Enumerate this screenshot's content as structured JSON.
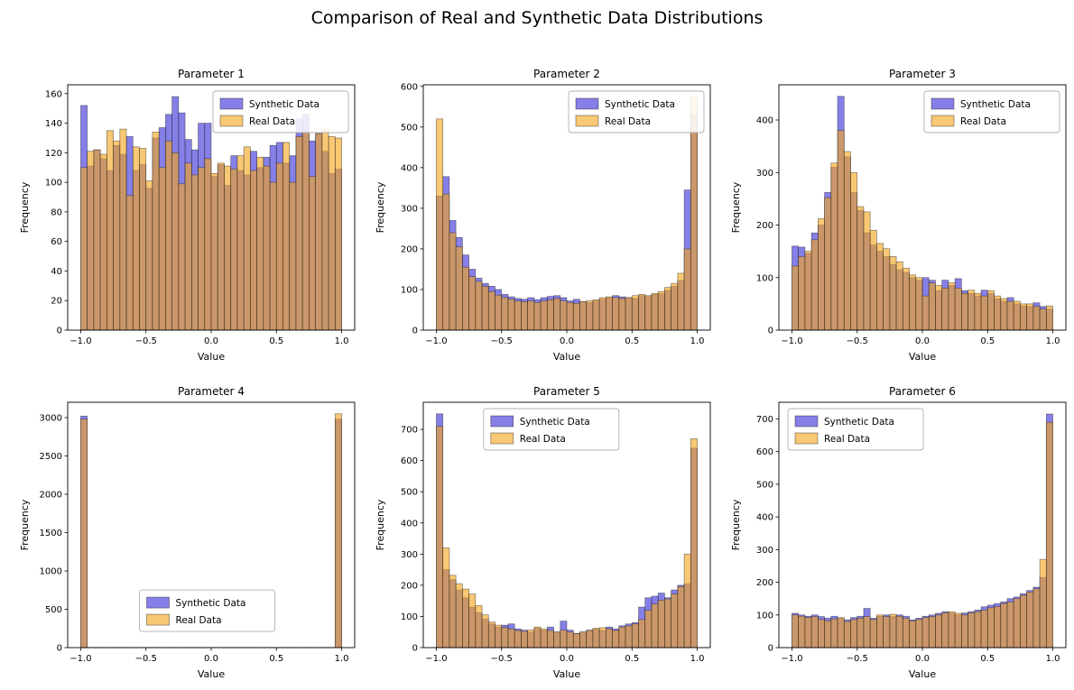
{
  "chart_data": {
    "type": "bar",
    "subtype": "overlaid-histogram-grid",
    "suptitle": "Comparison of Real and Synthetic Data Distributions",
    "rows": 2,
    "cols": 3,
    "bin_start": -1.0,
    "bin_width": 0.05,
    "n_bins": 40,
    "xlim": [
      -1.1,
      1.1
    ],
    "xticks": [
      -1.0,
      -0.5,
      0.0,
      0.5,
      1.0
    ],
    "xlabel": "Value",
    "ylabel": "Frequency",
    "grid": false,
    "series_names": [
      "Synthetic Data",
      "Real Data"
    ],
    "charts": [
      {
        "title": "Parameter 1",
        "ylim": [
          0,
          166
        ],
        "ytick_step": 20,
        "legend_loc": "upper-right",
        "synthetic": [
          152,
          111,
          122,
          116,
          108,
          125,
          119,
          131,
          108,
          112,
          96,
          130,
          137,
          146,
          158,
          147,
          129,
          122,
          140,
          140,
          104,
          112,
          98,
          118,
          108,
          105,
          121,
          110,
          117,
          125,
          127,
          113,
          118,
          143,
          146,
          128,
          133,
          121,
          106,
          109
        ],
        "real": [
          110,
          121,
          122,
          119,
          135,
          128,
          136,
          91,
          124,
          123,
          101,
          134,
          110,
          128,
          120,
          99,
          113,
          105,
          110,
          116,
          106,
          113,
          111,
          109,
          118,
          124,
          108,
          117,
          111,
          100,
          113,
          127,
          100,
          131,
          134,
          104,
          133,
          136,
          131,
          130
        ]
      },
      {
        "title": "Parameter 2",
        "ylim": [
          0,
          604
        ],
        "ytick_step": 100,
        "legend_loc": "upper-right",
        "synthetic": [
          330,
          378,
          270,
          228,
          185,
          150,
          128,
          115,
          108,
          100,
          88,
          82,
          78,
          76,
          80,
          75,
          80,
          83,
          85,
          80,
          72,
          76,
          70,
          68,
          72,
          76,
          80,
          85,
          82,
          80,
          78,
          85,
          83,
          88,
          90,
          98,
          108,
          122,
          345,
          530
        ],
        "real": [
          520,
          335,
          240,
          205,
          155,
          132,
          120,
          108,
          95,
          86,
          80,
          76,
          72,
          70,
          72,
          68,
          72,
          75,
          78,
          72,
          68,
          66,
          70,
          72,
          75,
          80,
          82,
          80,
          78,
          80,
          85,
          88,
          85,
          90,
          95,
          105,
          115,
          140,
          200,
          575
        ]
      },
      {
        "title": "Parameter 3",
        "ylim": [
          0,
          467
        ],
        "ytick_step": 100,
        "legend_loc": "upper-right",
        "synthetic": [
          160,
          158,
          146,
          185,
          200,
          262,
          310,
          445,
          330,
          262,
          228,
          185,
          162,
          150,
          140,
          125,
          115,
          110,
          100,
          95,
          100,
          95,
          75,
          95,
          85,
          98,
          75,
          70,
          65,
          76,
          70,
          60,
          55,
          62,
          50,
          46,
          45,
          52,
          45,
          40
        ],
        "real": [
          122,
          140,
          150,
          172,
          212,
          252,
          318,
          380,
          340,
          300,
          235,
          225,
          190,
          165,
          155,
          140,
          130,
          118,
          105,
          100,
          65,
          90,
          85,
          80,
          90,
          80,
          70,
          76,
          70,
          65,
          75,
          65,
          60,
          55,
          55,
          50,
          50,
          45,
          40,
          46
        ]
      },
      {
        "title": "Parameter 4",
        "ylim": [
          0,
          3200
        ],
        "ytick_step": 500,
        "legend_loc": "lower-center-left",
        "synthetic": [
          3020,
          2,
          1,
          2,
          1,
          1,
          2,
          1,
          1,
          1,
          2,
          1,
          1,
          2,
          1,
          1,
          2,
          1,
          1,
          2,
          1,
          1,
          2,
          1,
          1,
          2,
          1,
          1,
          2,
          1,
          1,
          2,
          1,
          1,
          2,
          1,
          1,
          2,
          1,
          2980
        ],
        "real": [
          2980,
          1,
          2,
          1,
          1,
          2,
          1,
          1,
          2,
          1,
          1,
          2,
          1,
          1,
          2,
          1,
          1,
          2,
          1,
          1,
          2,
          1,
          1,
          2,
          1,
          1,
          2,
          1,
          1,
          2,
          1,
          1,
          2,
          1,
          1,
          2,
          1,
          1,
          2,
          3050
        ]
      },
      {
        "title": "Parameter 5",
        "ylim": [
          0,
          787
        ],
        "ytick_step": 100,
        "legend_loc": "upper-center",
        "synthetic": [
          750,
          250,
          218,
          185,
          160,
          130,
          112,
          92,
          76,
          66,
          72,
          76,
          60,
          56,
          50,
          62,
          55,
          66,
          50,
          85,
          56,
          46,
          50,
          56,
          60,
          55,
          66,
          60,
          70,
          76,
          80,
          130,
          160,
          165,
          175,
          160,
          185,
          200,
          205,
          640
        ],
        "real": [
          710,
          320,
          232,
          205,
          188,
          172,
          135,
          105,
          82,
          72,
          64,
          60,
          55,
          52,
          56,
          66,
          60,
          55,
          50,
          56,
          50,
          45,
          50,
          55,
          62,
          64,
          60,
          55,
          66,
          70,
          76,
          90,
          120,
          140,
          152,
          156,
          172,
          196,
          300,
          670
        ]
      },
      {
        "title": "Parameter 6",
        "ylim": [
          0,
          751
        ],
        "ytick_step": 100,
        "legend_loc": "upper-left",
        "synthetic": [
          105,
          100,
          96,
          100,
          95,
          90,
          96,
          90,
          85,
          92,
          96,
          120,
          90,
          96,
          100,
          95,
          100,
          96,
          85,
          90,
          96,
          100,
          105,
          110,
          106,
          100,
          106,
          110,
          115,
          125,
          130,
          135,
          140,
          150,
          155,
          165,
          175,
          185,
          215,
          715
        ],
        "real": [
          100,
          96,
          92,
          95,
          86,
          82,
          88,
          92,
          80,
          86,
          90,
          95,
          86,
          100,
          95,
          102,
          96,
          90,
          82,
          86,
          92,
          95,
          100,
          106,
          110,
          105,
          100,
          106,
          110,
          115,
          122,
          126,
          135,
          140,
          150,
          160,
          170,
          180,
          270,
          690
        ]
      }
    ]
  },
  "colors": {
    "synthetic": "#3a30d9",
    "real": "#f5a71f",
    "edge": "#1f1f1f",
    "fill_opacity": 0.62,
    "spine": "#000000",
    "legend_border": "#b0b0b0",
    "background": "#ffffff"
  }
}
